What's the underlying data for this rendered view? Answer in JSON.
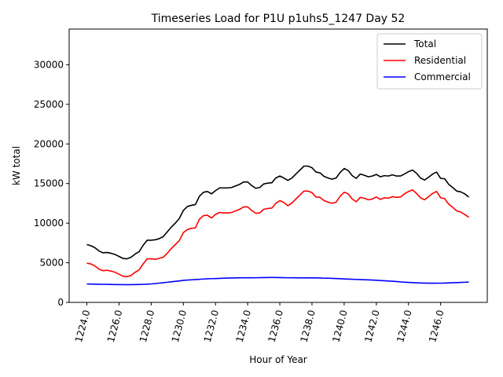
{
  "chart_data": {
    "type": "line",
    "title": "Timeseries Load for P1U p1uhs5_1247  Day 52",
    "xlabel": "Hour of Year",
    "ylabel": "kW total",
    "xlim": [
      1222.9,
      1248.9
    ],
    "ylim": [
      0,
      34500
    ],
    "xticks": [
      1224,
      1226,
      1228,
      1230,
      1232,
      1234,
      1236,
      1238,
      1240,
      1242,
      1244,
      1246
    ],
    "xtick_labels": [
      "1224.0",
      "1226.0",
      "1228.0",
      "1230.0",
      "1232.0",
      "1234.0",
      "1236.0",
      "1238.0",
      "1240.0",
      "1242.0",
      "1244.0",
      "1246.0"
    ],
    "yticks": [
      0,
      5000,
      10000,
      15000,
      20000,
      25000,
      30000
    ],
    "ytick_labels": [
      "0",
      "5000",
      "10000",
      "15000",
      "20000",
      "25000",
      "30000"
    ],
    "legend_position": "top-right",
    "x": [
      1224.0,
      1224.25,
      1224.5,
      1224.75,
      1225.0,
      1225.25,
      1225.5,
      1225.75,
      1226.0,
      1226.25,
      1226.5,
      1226.75,
      1227.0,
      1227.25,
      1227.5,
      1227.75,
      1228.0,
      1228.25,
      1228.5,
      1228.75,
      1229.0,
      1229.25,
      1229.5,
      1229.75,
      1230.0,
      1230.25,
      1230.5,
      1230.75,
      1231.0,
      1231.25,
      1231.5,
      1231.75,
      1232.0,
      1232.25,
      1232.5,
      1232.75,
      1233.0,
      1233.25,
      1233.5,
      1233.75,
      1234.0,
      1234.25,
      1234.5,
      1234.75,
      1235.0,
      1235.25,
      1235.5,
      1235.75,
      1236.0,
      1236.25,
      1236.5,
      1236.75,
      1237.0,
      1237.25,
      1237.5,
      1237.75,
      1238.0,
      1238.25,
      1238.5,
      1238.75,
      1239.0,
      1239.25,
      1239.5,
      1239.75,
      1240.0,
      1240.25,
      1240.5,
      1240.75,
      1241.0,
      1241.25,
      1241.5,
      1241.75,
      1242.0,
      1242.25,
      1242.5,
      1242.75,
      1243.0,
      1243.25,
      1243.5,
      1243.75,
      1244.0,
      1244.25,
      1244.5,
      1244.75,
      1245.0,
      1245.25,
      1245.5,
      1245.75,
      1246.0,
      1246.25,
      1246.5,
      1246.75,
      1247.0,
      1247.25,
      1247.5,
      1247.75
    ],
    "series": [
      {
        "name": "Total",
        "color": "#000000",
        "values": [
          7300,
          7150,
          6900,
          6500,
          6250,
          6300,
          6200,
          6050,
          5800,
          5550,
          5500,
          5700,
          6100,
          6400,
          7200,
          7850,
          7850,
          7900,
          8050,
          8300,
          8900,
          9500,
          10000,
          10600,
          11600,
          12100,
          12250,
          12350,
          13400,
          13900,
          14000,
          13700,
          14100,
          14450,
          14450,
          14450,
          14500,
          14700,
          14900,
          15200,
          15200,
          14750,
          14400,
          14500,
          14950,
          15050,
          15100,
          15700,
          15950,
          15700,
          15400,
          15700,
          16200,
          16700,
          17200,
          17200,
          17000,
          16450,
          16350,
          15900,
          15700,
          15550,
          15700,
          16400,
          16900,
          16650,
          16000,
          15650,
          16200,
          16050,
          15850,
          15950,
          16150,
          15850,
          16000,
          15950,
          16100,
          15950,
          15950,
          16200,
          16500,
          16700,
          16300,
          15700,
          15450,
          15800,
          16200,
          16450,
          15650,
          15600,
          14900,
          14500,
          14050,
          13950,
          13700,
          13300
        ]
      },
      {
        "name": "Residential",
        "color": "#ff0000",
        "values": [
          4950,
          4850,
          4600,
          4200,
          4000,
          4050,
          3950,
          3800,
          3550,
          3300,
          3250,
          3400,
          3800,
          4100,
          4850,
          5500,
          5500,
          5450,
          5550,
          5700,
          6200,
          6800,
          7300,
          7800,
          8800,
          9200,
          9350,
          9400,
          10500,
          10950,
          11000,
          10650,
          11100,
          11350,
          11300,
          11300,
          11350,
          11550,
          11750,
          12050,
          12050,
          11600,
          11250,
          11300,
          11750,
          11850,
          11900,
          12500,
          12850,
          12600,
          12200,
          12550,
          13050,
          13550,
          14050,
          14050,
          13850,
          13300,
          13250,
          12850,
          12650,
          12500,
          12650,
          13400,
          13900,
          13700,
          13050,
          12700,
          13250,
          13150,
          12950,
          13050,
          13300,
          13000,
          13200,
          13150,
          13350,
          13250,
          13300,
          13700,
          14000,
          14200,
          13750,
          13200,
          12950,
          13350,
          13750,
          14000,
          13200,
          13100,
          12400,
          12000,
          11550,
          11400,
          11100,
          10750
        ]
      },
      {
        "name": "Commercial",
        "color": "#0000ff",
        "values": [
          2320,
          2310,
          2300,
          2290,
          2280,
          2270,
          2260,
          2250,
          2250,
          2240,
          2240,
          2240,
          2250,
          2260,
          2280,
          2300,
          2330,
          2380,
          2430,
          2480,
          2540,
          2600,
          2660,
          2710,
          2780,
          2820,
          2850,
          2880,
          2910,
          2950,
          2980,
          3000,
          3010,
          3030,
          3050,
          3070,
          3080,
          3090,
          3100,
          3100,
          3100,
          3100,
          3110,
          3120,
          3130,
          3140,
          3140,
          3140,
          3130,
          3120,
          3110,
          3100,
          3100,
          3090,
          3090,
          3090,
          3100,
          3090,
          3080,
          3060,
          3050,
          3030,
          3010,
          2990,
          2960,
          2940,
          2920,
          2900,
          2880,
          2860,
          2840,
          2820,
          2790,
          2760,
          2730,
          2700,
          2670,
          2630,
          2590,
          2550,
          2520,
          2500,
          2470,
          2450,
          2440,
          2420,
          2420,
          2420,
          2430,
          2440,
          2460,
          2480,
          2500,
          2520,
          2540,
          2560
        ]
      }
    ]
  }
}
